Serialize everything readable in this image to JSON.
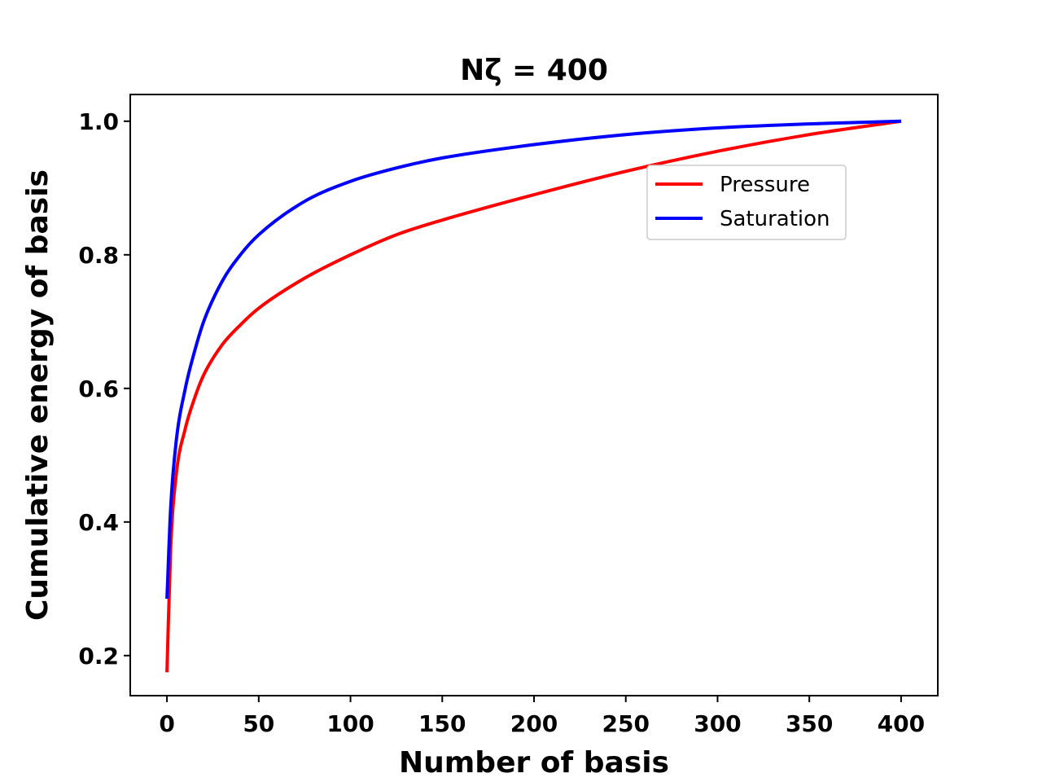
{
  "chart_data": {
    "type": "line",
    "title": "Nζ = 400",
    "xlabel": "Number of basis",
    "ylabel": "Cumulative energy of basis",
    "xlim": [
      -20,
      420
    ],
    "ylim": [
      0.14,
      1.04
    ],
    "xticks": [
      0,
      50,
      100,
      150,
      200,
      250,
      300,
      350,
      400
    ],
    "yticks": [
      0.2,
      0.4,
      0.6,
      0.8,
      1.0
    ],
    "xtick_labels": [
      "0",
      "50",
      "100",
      "150",
      "200",
      "250",
      "300",
      "350",
      "400"
    ],
    "ytick_labels": [
      "0.2",
      "0.4",
      "0.6",
      "0.8",
      "1.0"
    ],
    "grid": false,
    "legend_position": "upper-right",
    "series": [
      {
        "name": "Pressure",
        "color": "#ff0000",
        "x": [
          0,
          2,
          5,
          10,
          15,
          20,
          30,
          40,
          50,
          75,
          100,
          125,
          150,
          200,
          250,
          300,
          350,
          400
        ],
        "y": [
          0.175,
          0.36,
          0.47,
          0.54,
          0.585,
          0.62,
          0.665,
          0.695,
          0.72,
          0.765,
          0.8,
          0.83,
          0.852,
          0.89,
          0.925,
          0.955,
          0.98,
          1.0
        ]
      },
      {
        "name": "Saturation",
        "color": "#0000ff",
        "x": [
          0,
          2,
          5,
          10,
          15,
          20,
          30,
          40,
          50,
          75,
          100,
          125,
          150,
          200,
          250,
          300,
          350,
          400
        ],
        "y": [
          0.285,
          0.42,
          0.52,
          0.6,
          0.655,
          0.7,
          0.76,
          0.8,
          0.83,
          0.88,
          0.91,
          0.93,
          0.945,
          0.965,
          0.98,
          0.99,
          0.996,
          1.0
        ]
      }
    ]
  }
}
